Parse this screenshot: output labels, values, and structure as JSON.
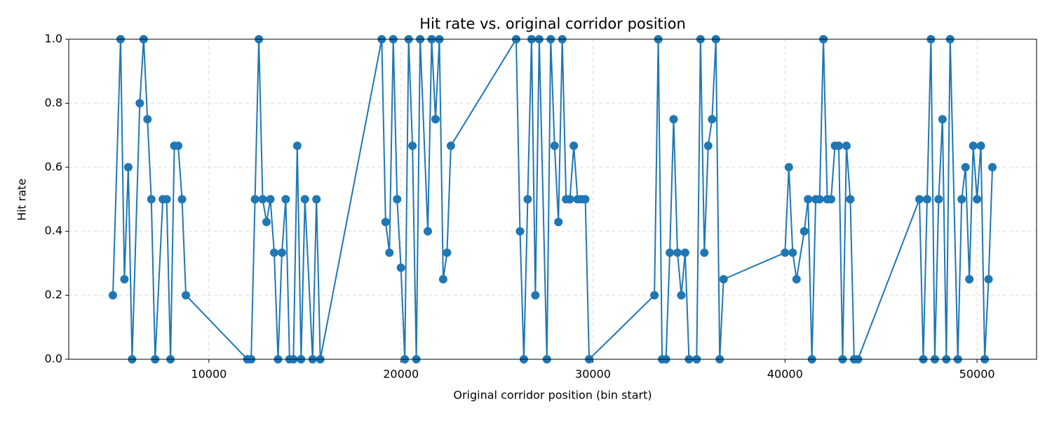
{
  "chart_data": {
    "type": "line",
    "title": "Hit rate vs. original corridor position",
    "x_label": "Original corridor position (bin start)",
    "y_label": "Hit rate",
    "x": [
      5000,
      5400,
      5600,
      5800,
      6000,
      6400,
      6600,
      6800,
      7000,
      7200,
      7600,
      7800,
      8000,
      8200,
      8400,
      8600,
      8800,
      12000,
      12200,
      12400,
      12600,
      12800,
      13000,
      13200,
      13400,
      13600,
      13800,
      14000,
      14200,
      14400,
      14600,
      14800,
      15000,
      15400,
      15600,
      15800,
      19000,
      19200,
      19400,
      19600,
      19800,
      20000,
      20200,
      20400,
      20600,
      20800,
      21000,
      21400,
      21600,
      21800,
      22000,
      22200,
      22400,
      22600,
      26000,
      26200,
      26400,
      26600,
      26800,
      27000,
      27200,
      27600,
      27800,
      28000,
      28200,
      28400,
      28600,
      28800,
      29000,
      29200,
      29400,
      29600,
      29800,
      33200,
      33400,
      33600,
      33800,
      34000,
      34200,
      34400,
      34600,
      34800,
      35000,
      35400,
      35600,
      35800,
      36000,
      36200,
      36400,
      36600,
      36800,
      40000,
      40200,
      40400,
      40600,
      41000,
      41200,
      41400,
      41600,
      41800,
      42000,
      42200,
      42400,
      42600,
      42800,
      43000,
      43200,
      43400,
      43600,
      43800,
      47000,
      47200,
      47400,
      47600,
      47800,
      48000,
      48200,
      48400,
      48600,
      49000,
      49200,
      49400,
      49600,
      49800,
      50000,
      50200,
      50400,
      50600,
      50800
    ],
    "series": [
      {
        "name": "Hit rate",
        "color": "#1f77b4",
        "values": [
          0.2,
          1.0,
          0.25,
          0.6,
          0,
          0.8,
          1.0,
          0.75,
          0.5,
          0,
          0.5,
          0.5,
          0,
          0.667,
          0.667,
          0.5,
          0.2,
          0,
          0,
          0.5,
          1.0,
          0.5,
          0.429,
          0.5,
          0.333,
          0,
          0.333,
          0.5,
          0,
          0,
          0.667,
          0,
          0.5,
          0,
          0.5,
          0,
          1.0,
          0.429,
          0.333,
          1.0,
          0.5,
          0.286,
          0,
          1.0,
          0.667,
          0,
          1.0,
          0.4,
          1.0,
          0.75,
          1.0,
          0.25,
          0.333,
          0.667,
          1.0,
          0.4,
          0,
          0.5,
          1.0,
          0.2,
          1.0,
          0,
          1.0,
          0.667,
          0.429,
          1.0,
          0.5,
          0.5,
          0.667,
          0.5,
          0.5,
          0.5,
          0,
          0.2,
          1.0,
          0,
          0,
          0.333,
          0.75,
          0.333,
          0.2,
          0.333,
          0,
          0,
          1.0,
          0.333,
          0.667,
          0.75,
          1.0,
          0,
          0.25,
          0.333,
          0.6,
          0.333,
          0.25,
          0.4,
          0.5,
          0,
          0.5,
          0.5,
          1.0,
          0.5,
          0.5,
          0.667,
          0.667,
          0,
          0.667,
          0.5,
          0,
          0,
          0.5,
          0,
          0.5,
          1.0,
          0,
          0.5,
          0.75,
          0,
          1.0,
          0,
          0.5,
          0.6,
          0.25,
          0.667,
          0.5,
          0.667,
          0,
          0.25,
          0.6
        ]
      }
    ],
    "xlim": [
      2700,
      53100
    ],
    "xticks": [
      10000,
      20000,
      30000,
      40000,
      50000
    ],
    "ylim": [
      0,
      1
    ],
    "yticks": [
      {
        "value": 0,
        "label": "0.0"
      },
      {
        "value": 0.2,
        "label": "0.2"
      },
      {
        "value": 0.4,
        "label": "0.4"
      },
      {
        "value": 0.6,
        "label": "0.6"
      },
      {
        "value": 0.8,
        "label": "0.8"
      },
      {
        "value": 1,
        "label": "1.0"
      }
    ],
    "grid": true
  }
}
